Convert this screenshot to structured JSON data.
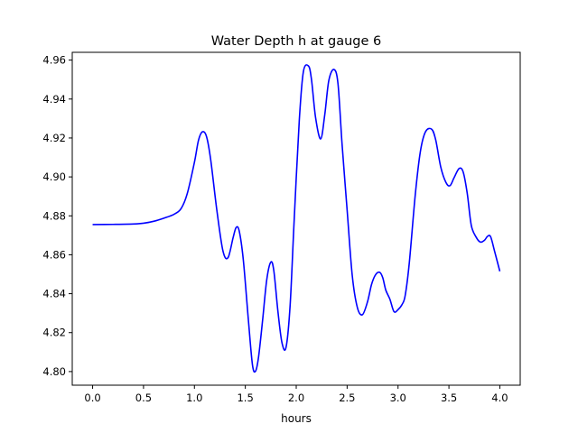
{
  "chart_data": {
    "type": "line",
    "title": "Water Depth h at gauge 6",
    "xlabel": "hours",
    "ylabel": "",
    "xlim": [
      -0.2,
      4.2
    ],
    "ylim": [
      4.793,
      4.964
    ],
    "xticks": [
      0.0,
      0.5,
      1.0,
      1.5,
      2.0,
      2.5,
      3.0,
      3.5,
      4.0
    ],
    "xtick_labels": [
      "0.0",
      "0.5",
      "1.0",
      "1.5",
      "2.0",
      "2.5",
      "3.0",
      "3.5",
      "4.0"
    ],
    "yticks": [
      4.8,
      4.82,
      4.84,
      4.86,
      4.88,
      4.9,
      4.92,
      4.94,
      4.96
    ],
    "ytick_labels": [
      "4.80",
      "4.82",
      "4.84",
      "4.86",
      "4.88",
      "4.90",
      "4.92",
      "4.94",
      "4.96"
    ],
    "grid": false,
    "legend": "none",
    "series": [
      {
        "color": "#0000ff",
        "x": [
          0.0,
          0.2,
          0.4,
          0.5,
          0.6,
          0.7,
          0.8,
          0.87,
          0.93,
          1.0,
          1.04,
          1.08,
          1.12,
          1.16,
          1.22,
          1.28,
          1.33,
          1.38,
          1.41,
          1.44,
          1.48,
          1.53,
          1.57,
          1.6,
          1.63,
          1.67,
          1.71,
          1.75,
          1.78,
          1.82,
          1.86,
          1.9,
          1.94,
          1.98,
          2.03,
          2.07,
          2.12,
          2.15,
          2.19,
          2.24,
          2.28,
          2.32,
          2.37,
          2.41,
          2.45,
          2.5,
          2.55,
          2.6,
          2.65,
          2.7,
          2.74,
          2.78,
          2.82,
          2.85,
          2.88,
          2.92,
          2.96,
          3.0,
          3.04,
          3.07,
          3.11,
          3.17,
          3.22,
          3.27,
          3.33,
          3.37,
          3.42,
          3.47,
          3.51,
          3.55,
          3.6,
          3.64,
          3.68,
          3.72,
          3.77,
          3.81,
          3.85,
          3.88,
          3.91,
          3.95,
          4.0
        ],
        "y": [
          4.8755,
          4.8756,
          4.8758,
          4.8762,
          4.8772,
          4.8788,
          4.8808,
          4.8838,
          4.8915,
          4.9075,
          4.9188,
          4.9232,
          4.9205,
          4.9088,
          4.883,
          4.862,
          4.8585,
          4.8688,
          4.874,
          4.8722,
          4.8575,
          4.8265,
          4.8035,
          4.8002,
          4.8075,
          4.8265,
          4.847,
          4.8562,
          4.8518,
          4.831,
          4.8148,
          4.8125,
          4.834,
          4.878,
          4.929,
          4.954,
          4.957,
          4.95,
          4.9305,
          4.9195,
          4.9318,
          4.9495,
          4.9552,
          4.948,
          4.917,
          4.883,
          4.8495,
          4.833,
          4.8292,
          4.8358,
          4.8448,
          4.8498,
          4.851,
          4.8482,
          4.8418,
          4.8372,
          4.8308,
          4.8318,
          4.8345,
          4.839,
          4.8555,
          4.8912,
          4.9132,
          4.9232,
          4.9245,
          4.919,
          4.905,
          4.8972,
          4.8955,
          4.8995,
          4.9043,
          4.9025,
          4.8915,
          4.875,
          4.8688,
          4.8665,
          4.8675,
          4.8695,
          4.8692,
          4.8615,
          4.8515
        ]
      }
    ]
  }
}
